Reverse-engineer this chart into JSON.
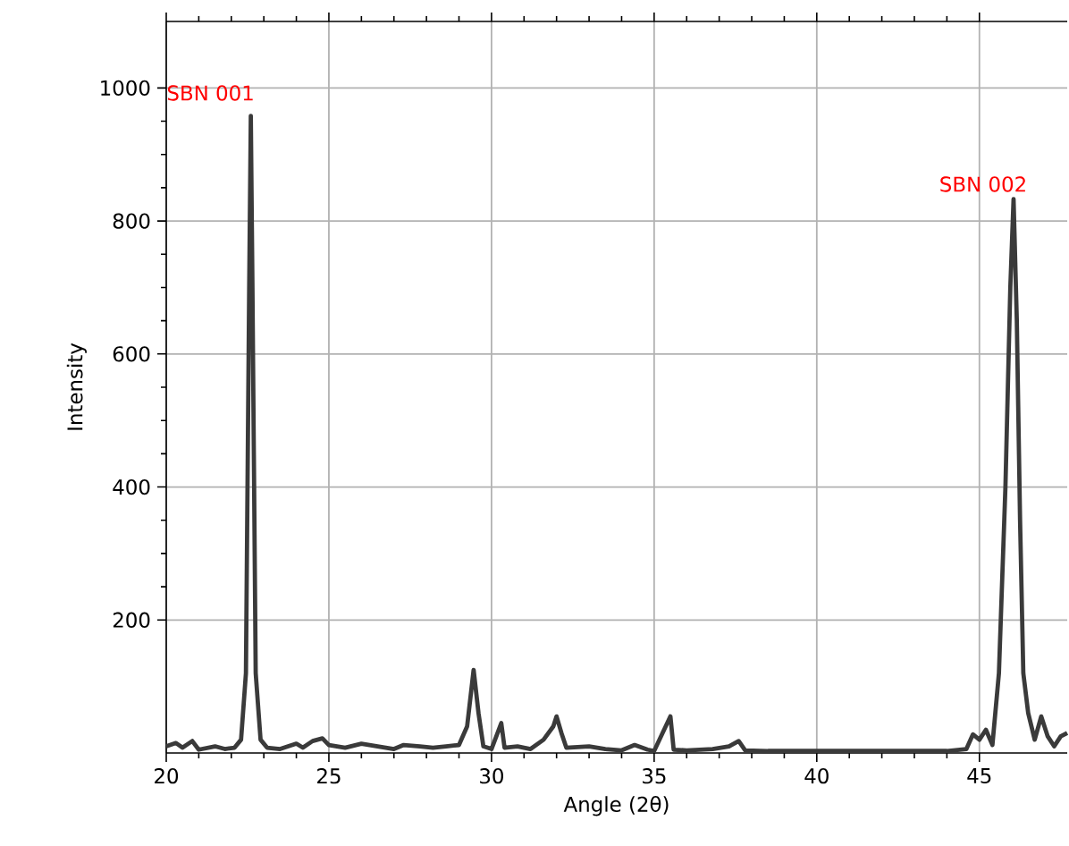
{
  "chart_data": {
    "type": "line",
    "xlabel": "Angle (2θ)",
    "ylabel": "Intensity",
    "xlim": [
      20,
      47.7
    ],
    "ylim": [
      0,
      1100
    ],
    "xticks": [
      20,
      25,
      30,
      35,
      40,
      45
    ],
    "yticks": [
      200,
      400,
      600,
      800,
      1000
    ],
    "grid": true,
    "marker": "none",
    "line_style": "solid",
    "annotations": [
      "SBN 001",
      "SBN 002"
    ],
    "series": [
      {
        "color": "#3a3a3a",
        "x": [
          20.0,
          20.3,
          20.5,
          20.8,
          21.0,
          21.5,
          21.8,
          22.1,
          22.3,
          22.45,
          22.55,
          22.6,
          22.65,
          22.75,
          22.9,
          23.1,
          23.5,
          24.0,
          24.2,
          24.5,
          24.8,
          25.0,
          25.5,
          26.0,
          26.5,
          27.0,
          27.3,
          27.8,
          28.2,
          28.6,
          29.0,
          29.25,
          29.45,
          29.6,
          29.75,
          30.0,
          30.3,
          30.4,
          30.8,
          31.2,
          31.6,
          31.9,
          32.0,
          32.15,
          32.3,
          33.0,
          33.5,
          34.0,
          34.4,
          34.8,
          35.0,
          35.5,
          35.6,
          36.0,
          36.8,
          37.3,
          37.6,
          37.8,
          38.5,
          40.0,
          42.0,
          44.0,
          44.6,
          44.8,
          45.0,
          45.2,
          45.4,
          45.6,
          45.8,
          45.95,
          46.05,
          46.15,
          46.25,
          46.35,
          46.5,
          46.7,
          46.9,
          47.1,
          47.3,
          47.5,
          47.7
        ],
        "values": [
          10,
          15,
          8,
          18,
          5,
          10,
          6,
          8,
          20,
          120,
          700,
          958,
          700,
          120,
          20,
          8,
          6,
          14,
          8,
          18,
          22,
          12,
          8,
          14,
          10,
          6,
          12,
          10,
          8,
          10,
          12,
          40,
          125,
          60,
          10,
          6,
          45,
          8,
          10,
          6,
          20,
          40,
          55,
          30,
          8,
          10,
          6,
          4,
          12,
          5,
          3,
          55,
          5,
          4,
          6,
          10,
          18,
          4,
          3,
          3,
          3,
          3,
          6,
          28,
          20,
          35,
          12,
          120,
          400,
          700,
          833,
          650,
          350,
          120,
          60,
          20,
          55,
          25,
          10,
          25,
          30
        ]
      }
    ]
  }
}
